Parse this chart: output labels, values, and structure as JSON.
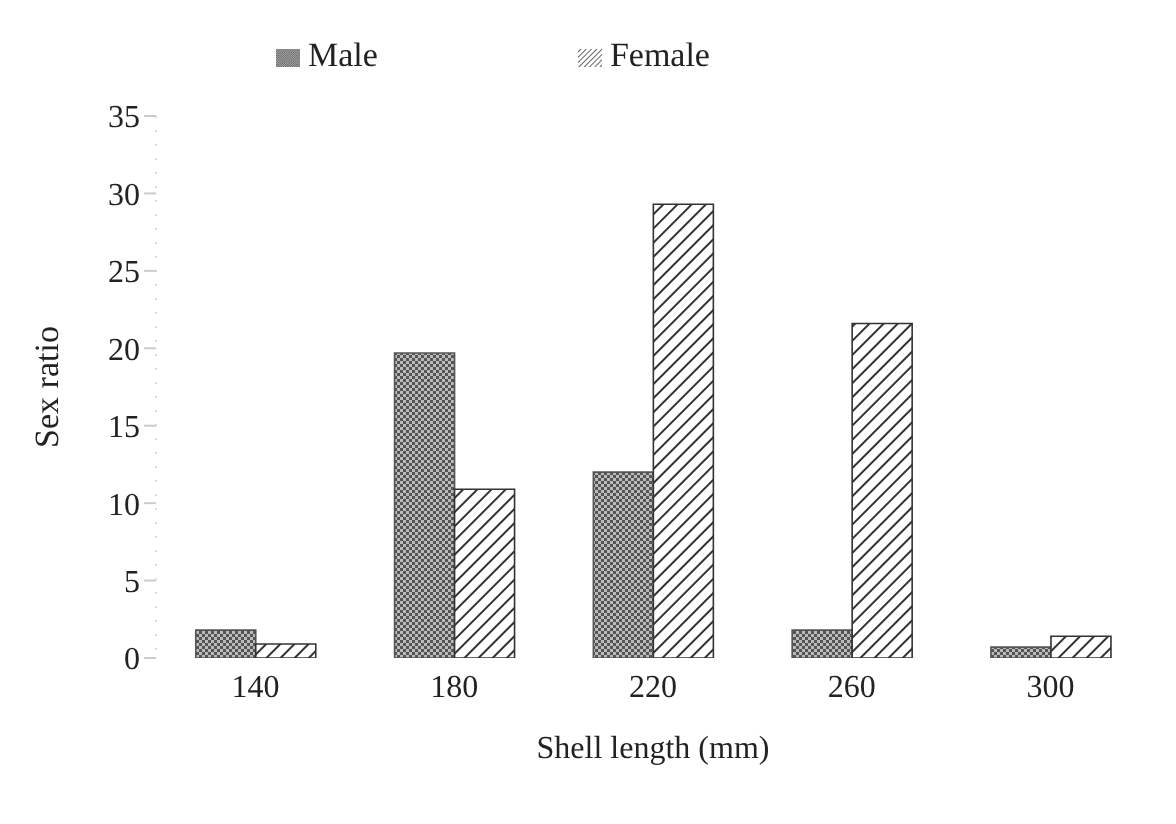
{
  "chart_data": {
    "type": "bar",
    "xlabel": "Shell length (mm)",
    "ylabel": "Sex  ratio",
    "categories": [
      "140",
      "180",
      "220",
      "260",
      "300"
    ],
    "series": [
      {
        "name": "Male",
        "color": "#555555",
        "values": [
          1.8,
          19.7,
          12,
          1.8,
          0.7
        ]
      },
      {
        "name": "Female",
        "color": "#333333",
        "values": [
          0.9,
          10.9,
          29.3,
          21.6,
          1.4
        ]
      }
    ],
    "ylim": [
      0,
      35
    ],
    "yticks": [
      0,
      5,
      10,
      15,
      20,
      25,
      30,
      35
    ],
    "grid": false,
    "legend": "top"
  }
}
